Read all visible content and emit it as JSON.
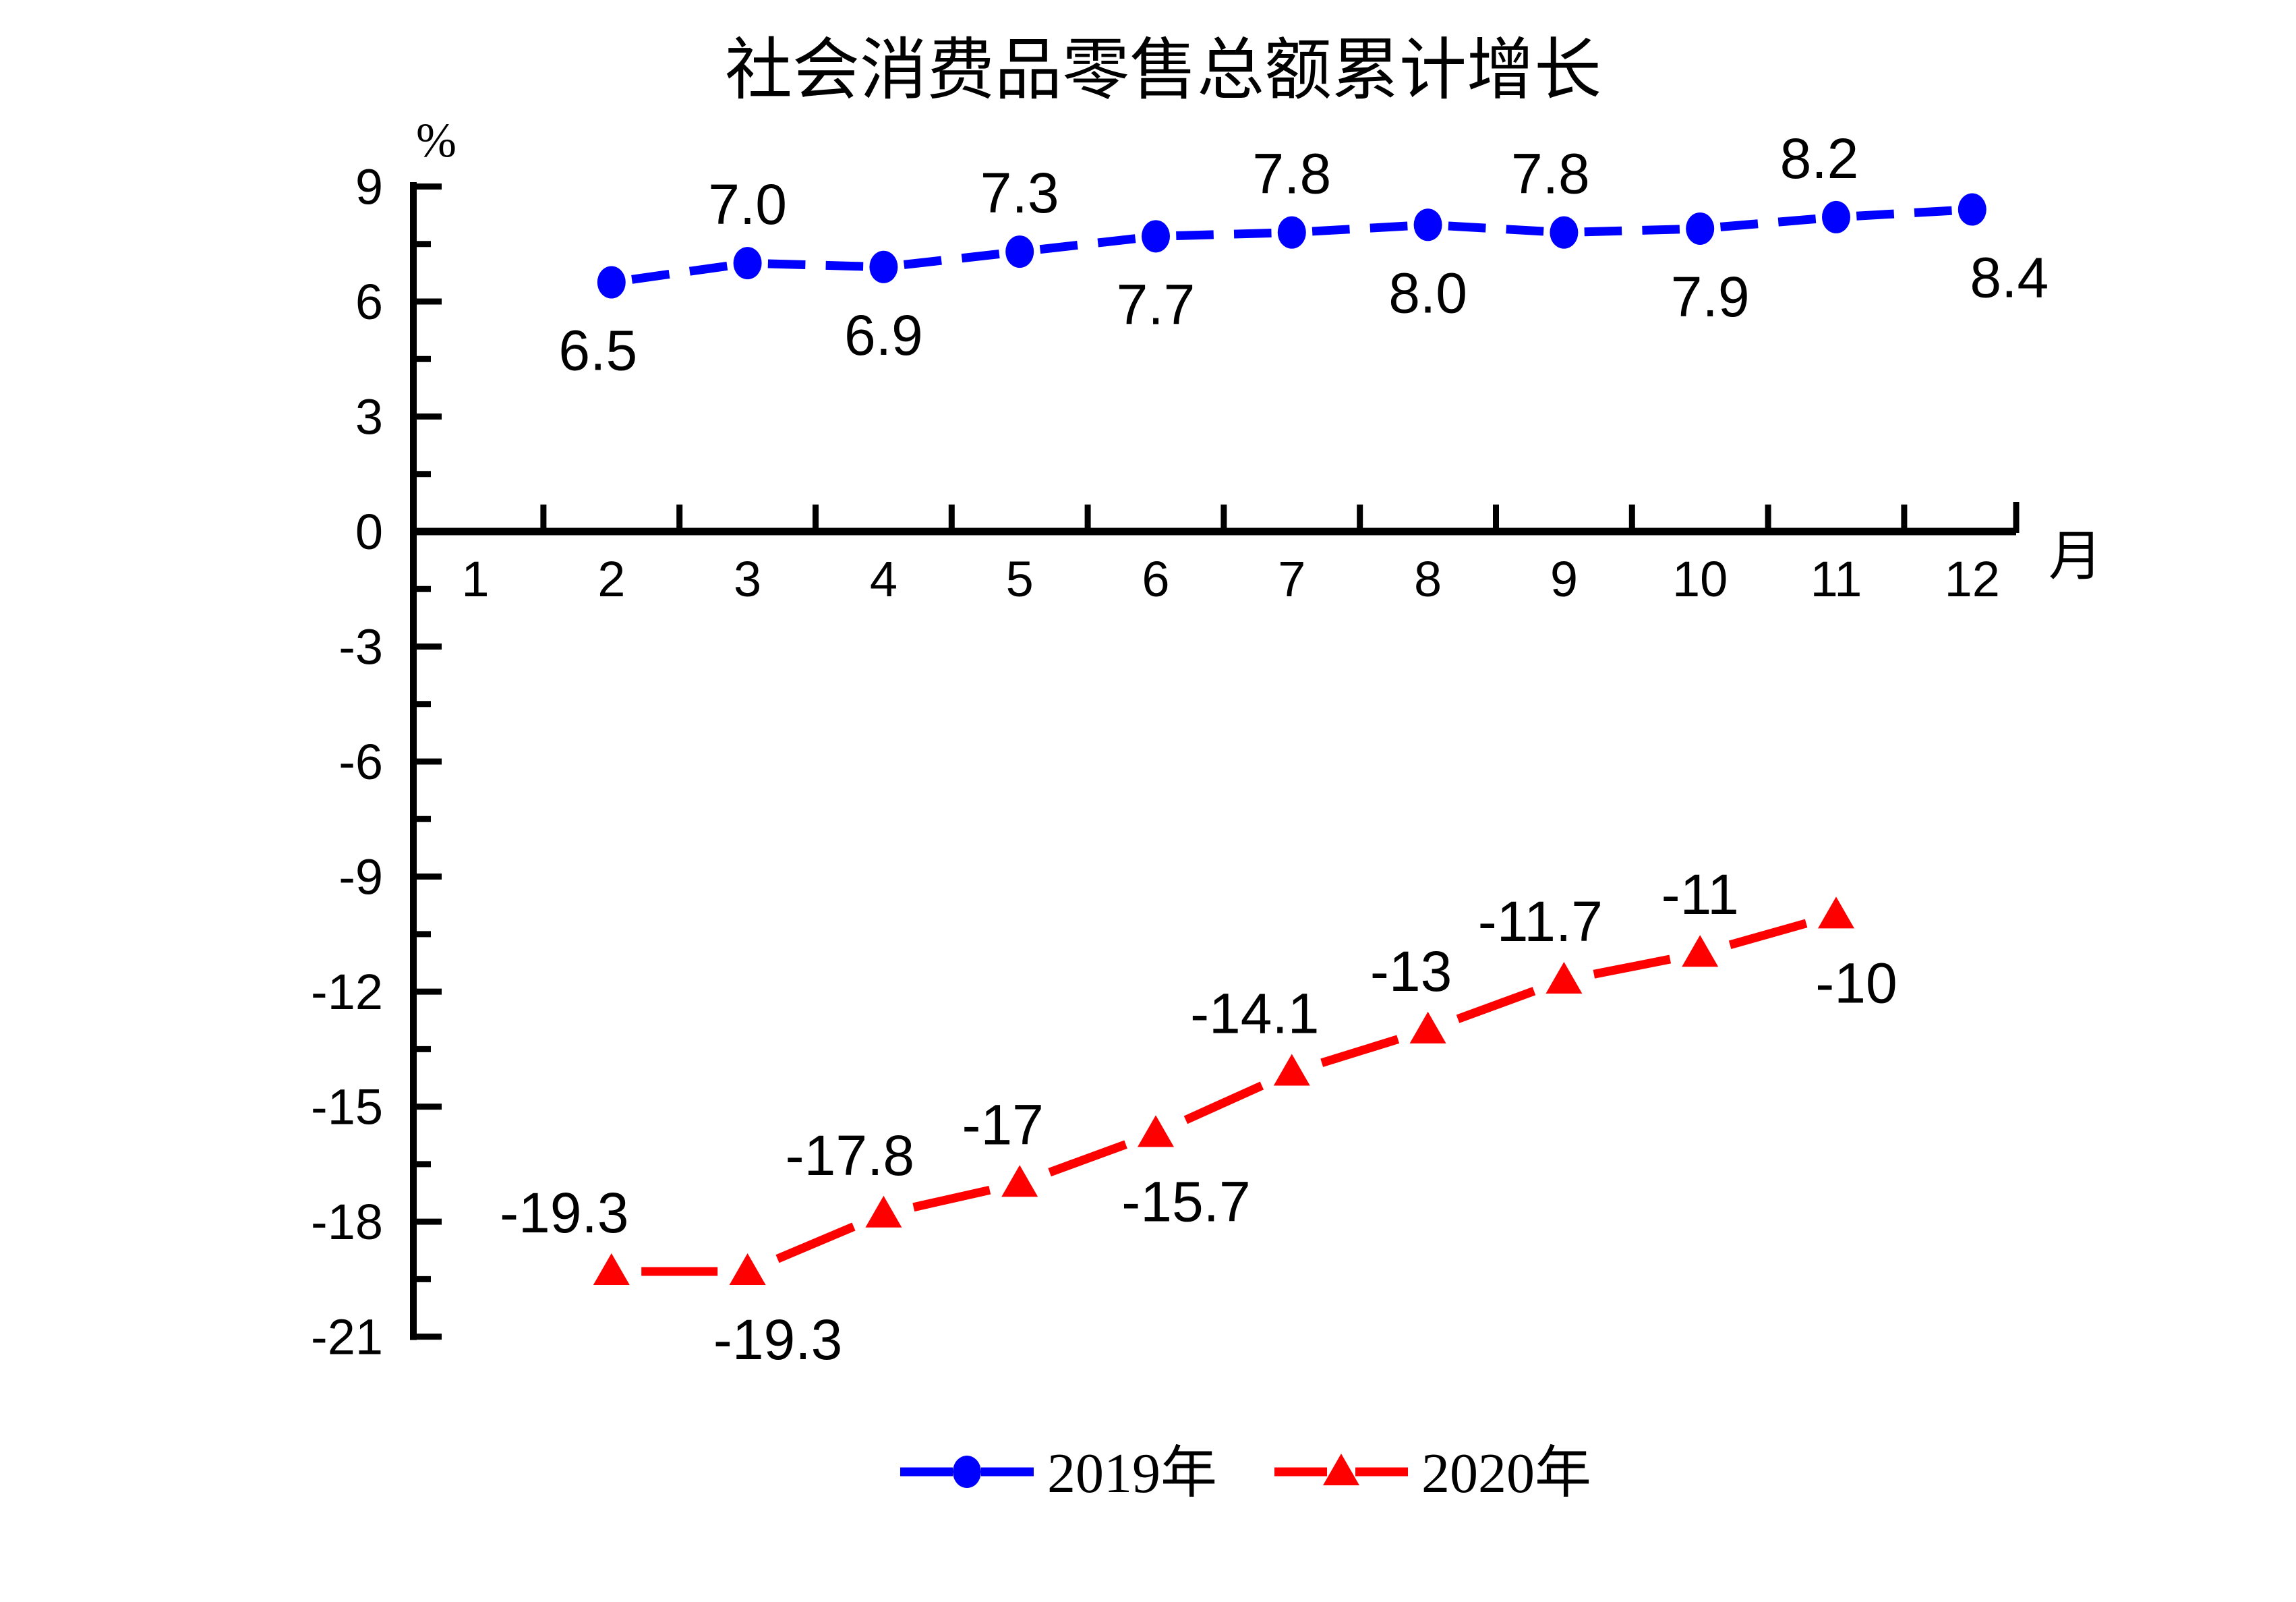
{
  "chart_data": {
    "type": "line",
    "title": "社会消费品零售总额累计增长",
    "y_unit": "%",
    "x_unit": "月",
    "ylim": [
      -21,
      9
    ],
    "grid": false,
    "legend_position": "bottom-center",
    "x_tick_labels": [
      "1",
      "2",
      "3",
      "4",
      "5",
      "6",
      "7",
      "8",
      "9",
      "10",
      "11",
      "12"
    ],
    "y_tick_labels": [
      "9",
      "6",
      "3",
      "0",
      "-3",
      "-6",
      "-9",
      "-12",
      "-15",
      "-18",
      "-21"
    ],
    "y_major_tick_step": 3,
    "y_minor_tick_step": 1.5,
    "series": [
      {
        "name": "2019年",
        "color": "#0000ff",
        "marker": "circle",
        "line_style": "dashed",
        "points": [
          {
            "x": 2,
            "y": 6.5,
            "label": "6.5",
            "label_pos": "below",
            "dx": -20
          },
          {
            "x": 3,
            "y": 7.0,
            "label": "7.0",
            "label_pos": "above",
            "dx": 0
          },
          {
            "x": 4,
            "y": 6.9,
            "label": "6.9",
            "label_pos": "below",
            "dx": 0
          },
          {
            "x": 5,
            "y": 7.3,
            "label": "7.3",
            "label_pos": "above",
            "dx": 0
          },
          {
            "x": 6,
            "y": 7.7,
            "label": "7.7",
            "label_pos": "below",
            "dx": 0
          },
          {
            "x": 7,
            "y": 7.8,
            "label": "7.8",
            "label_pos": "above",
            "dx": 0
          },
          {
            "x": 8,
            "y": 8.0,
            "label": "8.0",
            "label_pos": "below",
            "dx": 0
          },
          {
            "x": 9,
            "y": 7.8,
            "label": "7.8",
            "label_pos": "above",
            "dx": -20
          },
          {
            "x": 10,
            "y": 7.9,
            "label": "7.9",
            "label_pos": "below",
            "dx": 15
          },
          {
            "x": 11,
            "y": 8.2,
            "label": "8.2",
            "label_pos": "above",
            "dx": -25
          },
          {
            "x": 12,
            "y": 8.4,
            "label": "8.4",
            "label_pos": "below",
            "dx": 55
          }
        ]
      },
      {
        "name": "2020年",
        "color": "#ff0000",
        "marker": "triangle",
        "line_style": "dashed",
        "points": [
          {
            "x": 2,
            "y": -19.3,
            "label": "-19.3",
            "label_pos": "above",
            "dx": -70
          },
          {
            "x": 3,
            "y": -19.3,
            "label": "-19.3",
            "label_pos": "below",
            "dx": 45
          },
          {
            "x": 4,
            "y": -17.8,
            "label": "-17.8",
            "label_pos": "above",
            "dx": -50
          },
          {
            "x": 5,
            "y": -17.0,
            "label": "-17",
            "label_pos": "above",
            "dx": -25
          },
          {
            "x": 6,
            "y": -15.7,
            "label": "-15.7",
            "label_pos": "below",
            "dx": 45
          },
          {
            "x": 7,
            "y": -14.1,
            "label": "-14.1",
            "label_pos": "above",
            "dx": -55
          },
          {
            "x": 8,
            "y": -13.0,
            "label": "-13",
            "label_pos": "above",
            "dx": -25
          },
          {
            "x": 9,
            "y": -11.7,
            "label": "-11.7",
            "label_pos": "above",
            "dx": -35
          },
          {
            "x": 10,
            "y": -11.0,
            "label": "-11",
            "label_pos": "above",
            "dx": 0
          },
          {
            "x": 11,
            "y": -10.0,
            "label": "-10",
            "label_pos": "below",
            "dx": 30
          }
        ]
      }
    ]
  }
}
